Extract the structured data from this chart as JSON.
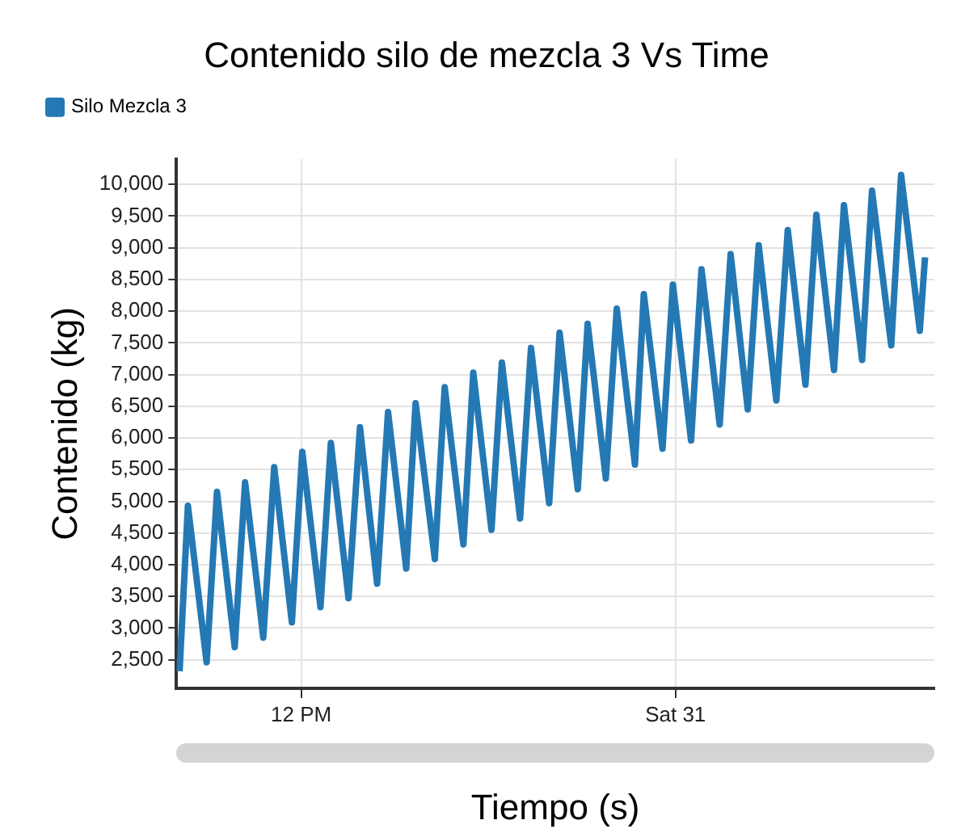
{
  "chart_data": {
    "type": "line",
    "title": "Contenido silo de mezcla 3 Vs Time",
    "xlabel": "Tiempo (s)",
    "ylabel": "Contenido (kg)",
    "xlim": [
      "--12-30T08:00",
      "--12-31T08:18"
    ],
    "xticks": [
      {
        "value": "--12-30T12:00",
        "label": "12 PM"
      },
      {
        "value": "--12-31T00:00",
        "label": "Sat 31"
      }
    ],
    "ylim": [
      2050,
      10400
    ],
    "yticks": [
      {
        "value": 2500,
        "label": "2,500"
      },
      {
        "value": 3000,
        "label": "3,000"
      },
      {
        "value": 3500,
        "label": "3,500"
      },
      {
        "value": 4000,
        "label": "4,000"
      },
      {
        "value": 4500,
        "label": "4,500"
      },
      {
        "value": 5000,
        "label": "5,000"
      },
      {
        "value": 5500,
        "label": "5,500"
      },
      {
        "value": 6000,
        "label": "6,000"
      },
      {
        "value": 6500,
        "label": "6,500"
      },
      {
        "value": 7000,
        "label": "7,000"
      },
      {
        "value": 7500,
        "label": "7,500"
      },
      {
        "value": 8000,
        "label": "8,000"
      },
      {
        "value": 8500,
        "label": "8,500"
      },
      {
        "value": 9000,
        "label": "9,000"
      },
      {
        "value": 9500,
        "label": "9,500"
      },
      {
        "value": 10000,
        "label": "10,000"
      }
    ],
    "grid": true,
    "legend": "top left",
    "marker": "none",
    "line_style": "solid",
    "series": [
      {
        "name": "Silo Mezcla 3",
        "color": "#2479b4",
        "x": [
          "--12-30T08:06",
          "--12-30T08:22",
          "--12-30T08:58",
          "--12-30T09:18",
          "--12-30T09:52",
          "--12-30T10:12",
          "--12-30T10:47",
          "--12-30T11:08",
          "--12-30T11:42",
          "--12-30T12:02",
          "--12-30T12:37",
          "--12-30T12:57",
          "--12-30T13:31",
          "--12-30T13:53",
          "--12-30T14:26",
          "--12-30T14:47",
          "--12-30T15:22",
          "--12-30T15:40",
          "--12-30T16:17",
          "--12-30T16:36",
          "--12-30T17:12",
          "--12-30T17:31",
          "--12-30T18:06",
          "--12-30T18:26",
          "--12-30T19:01",
          "--12-30T19:22",
          "--12-30T19:57",
          "--12-30T20:17",
          "--12-30T20:52",
          "--12-30T21:11",
          "--12-30T21:46",
          "--12-30T22:07",
          "--12-30T22:42",
          "--12-30T22:59",
          "--12-30T23:35",
          "--12-30T23:55",
          "--12-31T00:30",
          "--12-31T00:50",
          "--12-31T01:25",
          "--12-31T01:46",
          "--12-31T02:19",
          "--12-31T02:40",
          "--12-31T03:14",
          "--12-31T03:36",
          "--12-31T04:10",
          "--12-31T04:31",
          "--12-31T05:05",
          "--12-31T05:24",
          "--12-31T05:59",
          "--12-31T06:18",
          "--12-31T06:55",
          "--12-31T07:14",
          "--12-31T07:50",
          "--12-31T08:00"
        ],
        "values": [
          2320,
          4930,
          2460,
          5150,
          2700,
          5300,
          2850,
          5540,
          3090,
          5780,
          3330,
          5920,
          3470,
          6170,
          3700,
          6410,
          3940,
          6550,
          4090,
          6800,
          4320,
          7030,
          4550,
          7190,
          4730,
          7420,
          4970,
          7660,
          5190,
          7800,
          5360,
          8040,
          5580,
          8270,
          5830,
          8420,
          5960,
          8660,
          6210,
          8900,
          6450,
          9040,
          6590,
          9280,
          6840,
          9520,
          7070,
          9670,
          7230,
          9900,
          7460,
          10150,
          7690,
          8850
        ]
      }
    ]
  }
}
